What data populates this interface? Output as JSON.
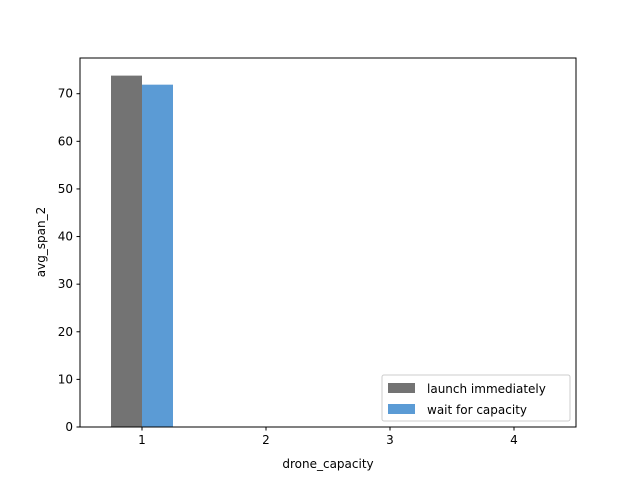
{
  "chart_data": {
    "type": "bar",
    "title": "",
    "xlabel": "drone_capacity",
    "ylabel": "avg_span_2",
    "categories": [
      "1",
      "2",
      "3",
      "4"
    ],
    "series": [
      {
        "name": "launch immediately",
        "values": [
          73.8,
          null,
          null,
          null
        ],
        "color": "#737373"
      },
      {
        "name": "wait for capacity",
        "values": [
          71.9,
          null,
          null,
          null
        ],
        "color": "#5b9bd5"
      }
    ],
    "ylim": [
      0,
      77.5
    ],
    "yticks": [
      0,
      10,
      20,
      30,
      40,
      50,
      60,
      70
    ],
    "grid": false,
    "legend_position": "lower-right"
  }
}
